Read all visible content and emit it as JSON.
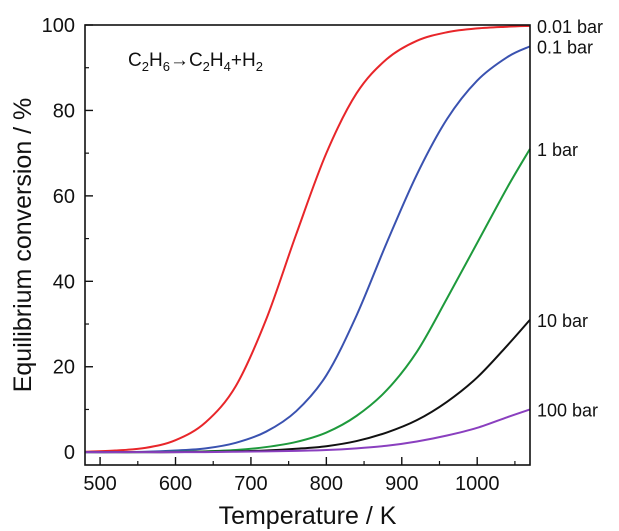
{
  "chart_data": {
    "type": "line",
    "annotation": {
      "parts": [
        {
          "t": "C",
          "sub": false
        },
        {
          "t": "2",
          "sub": true
        },
        {
          "t": "H",
          "sub": false
        },
        {
          "t": "6",
          "sub": true
        },
        {
          "t": "→C",
          "sub": false
        },
        {
          "t": "2",
          "sub": true
        },
        {
          "t": "H",
          "sub": false
        },
        {
          "t": "4",
          "sub": true
        },
        {
          "t": "+H",
          "sub": false
        },
        {
          "t": "2",
          "sub": true
        }
      ]
    },
    "xlabel": "Temperature / K",
    "ylabel": "Equilibrium conversion / %",
    "xlim": [
      480,
      1070
    ],
    "ylim": [
      -3,
      100
    ],
    "xticks": [
      500,
      600,
      700,
      800,
      900,
      1000
    ],
    "xticks_minor": [
      550,
      650,
      750,
      850,
      950,
      1050
    ],
    "yticks": [
      0,
      20,
      40,
      60,
      80,
      100
    ],
    "yticks_minor": [
      10,
      30,
      50,
      70,
      90
    ],
    "grid": false,
    "x": [
      480,
      520,
      560,
      600,
      640,
      680,
      720,
      760,
      800,
      840,
      880,
      920,
      960,
      1000,
      1040,
      1070
    ],
    "series": [
      {
        "name": "0.01 bar",
        "color": "#e8262a",
        "values": [
          0.1,
          0.4,
          1.0,
          2.8,
          7.0,
          15.5,
          31.0,
          51.0,
          70.0,
          84.0,
          92.0,
          96.3,
          98.3,
          99.2,
          99.6,
          99.8
        ],
        "label_value": 99.8
      },
      {
        "name": "0.1 bar",
        "color": "#3a52b0",
        "values": [
          0.0,
          0.0,
          0.1,
          0.4,
          0.9,
          2.2,
          4.8,
          9.6,
          18.0,
          32.0,
          49.0,
          65.0,
          78.0,
          87.0,
          92.5,
          95.0
        ],
        "label_value": 95.0
      },
      {
        "name": "1 bar",
        "color": "#1e9a3c",
        "values": [
          0.0,
          0.0,
          0.0,
          0.1,
          0.2,
          0.5,
          1.2,
          2.4,
          4.6,
          8.5,
          14.5,
          23.5,
          36.0,
          49.0,
          62.0,
          71.0
        ],
        "label_value": 71.0
      },
      {
        "name": "10 bar",
        "color": "#111111",
        "values": [
          0.0,
          0.0,
          0.0,
          0.0,
          0.1,
          0.2,
          0.4,
          0.8,
          1.4,
          2.6,
          4.6,
          7.5,
          11.8,
          17.5,
          25.0,
          31.0
        ],
        "label_value": 31.0
      },
      {
        "name": "100 bar",
        "color": "#8a3fbf",
        "values": [
          0.0,
          0.0,
          0.0,
          0.0,
          0.0,
          0.1,
          0.2,
          0.3,
          0.5,
          0.9,
          1.5,
          2.5,
          3.9,
          5.7,
          8.2,
          10.0
        ],
        "label_value": 10.0
      }
    ]
  }
}
